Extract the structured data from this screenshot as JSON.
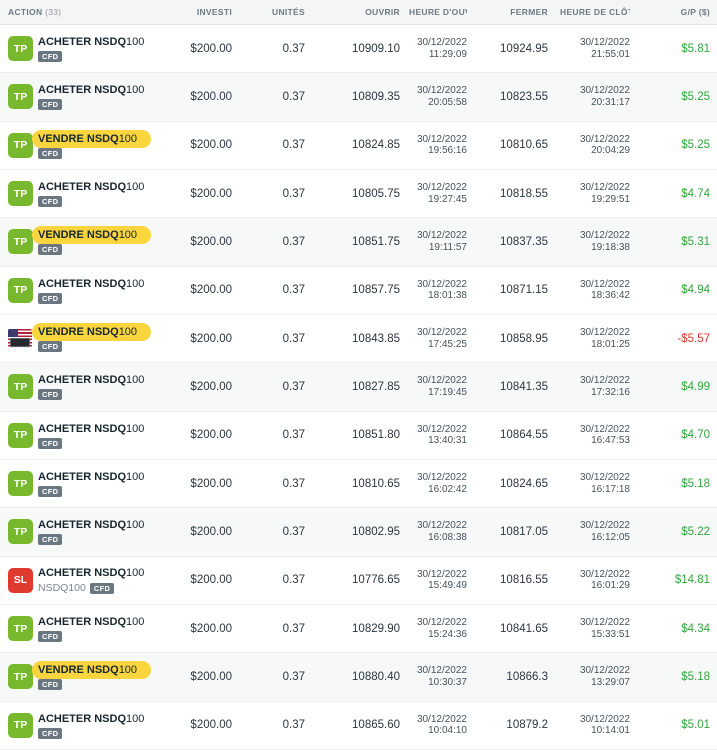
{
  "header": {
    "action_label": "ACTION",
    "action_count": "(33)",
    "invested": "INVESTI",
    "units": "UNITÉS",
    "open": "OUVRIR",
    "open_time": "HEURE D'OUVERT...",
    "close": "FERMER",
    "close_time": "HEURE DE CLÔTU..",
    "gp": "G/P ($)"
  },
  "badges": {
    "tp": "TP",
    "sl": "SL",
    "cfd": "CFD"
  },
  "colors": {
    "tp_green": "#77b82d",
    "sl_red": "#e03a2f",
    "gain_green": "#2fa63c",
    "loss_red": "#d8382e",
    "highlight_yellow": "#fbd53d",
    "cfd_gray": "#6a7680",
    "shaded_row": "#f7f8f8"
  },
  "rows": [
    {
      "badge": "tp",
      "action_bold": "ACHETER NSDQ",
      "action_rest": "100",
      "highlight": false,
      "sub": "",
      "invested": "$200.00",
      "units": "0.37",
      "open": "10909.10",
      "open_date": "30/12/2022",
      "open_time": "11:29:09",
      "close": "10924.95",
      "close_date": "30/12/2022",
      "close_time": "21:55:01",
      "gp": "$5.81",
      "negative": false,
      "shaded": false
    },
    {
      "badge": "tp",
      "action_bold": "ACHETER NSDQ",
      "action_rest": "100",
      "highlight": false,
      "sub": "",
      "invested": "$200.00",
      "units": "0.37",
      "open": "10809.35",
      "open_date": "30/12/2022",
      "open_time": "20:05:58",
      "close": "10823.55",
      "close_date": "30/12/2022",
      "close_time": "20:31:17",
      "gp": "$5.25",
      "negative": false,
      "shaded": true
    },
    {
      "badge": "tp",
      "action_bold": "VENDRE NSDQ",
      "action_rest": "100",
      "highlight": true,
      "sub": "",
      "invested": "$200.00",
      "units": "0.37",
      "open": "10824.85",
      "open_date": "30/12/2022",
      "open_time": "19:56:16",
      "close": "10810.65",
      "close_date": "30/12/2022",
      "close_time": "20:04:29",
      "gp": "$5.25",
      "negative": false,
      "shaded": false
    },
    {
      "badge": "tp",
      "action_bold": "ACHETER NSDQ",
      "action_rest": "100",
      "highlight": false,
      "sub": "",
      "invested": "$200.00",
      "units": "0.37",
      "open": "10805.75",
      "open_date": "30/12/2022",
      "open_time": "19:27:45",
      "close": "10818.55",
      "close_date": "30/12/2022",
      "close_time": "19:29:51",
      "gp": "$4.74",
      "negative": false,
      "shaded": false
    },
    {
      "badge": "tp",
      "action_bold": "VENDRE NSDQ",
      "action_rest": "100",
      "highlight": true,
      "sub": "",
      "invested": "$200.00",
      "units": "0.37",
      "open": "10851.75",
      "open_date": "30/12/2022",
      "open_time": "19:11:57",
      "close": "10837.35",
      "close_date": "30/12/2022",
      "close_time": "19:18:38",
      "gp": "$5.31",
      "negative": false,
      "shaded": true
    },
    {
      "badge": "tp",
      "action_bold": "ACHETER NSDQ",
      "action_rest": "100",
      "highlight": false,
      "sub": "",
      "invested": "$200.00",
      "units": "0.37",
      "open": "10857.75",
      "open_date": "30/12/2022",
      "open_time": "18:01:38",
      "close": "10871.15",
      "close_date": "30/12/2022",
      "close_time": "18:36:42",
      "gp": "$4.94",
      "negative": false,
      "shaded": false
    },
    {
      "badge": "flag",
      "action_bold": "VENDRE NSDQ",
      "action_rest": "100",
      "highlight": true,
      "sub": "",
      "invested": "$200.00",
      "units": "0.37",
      "open": "10843.85",
      "open_date": "30/12/2022",
      "open_time": "17:45:25",
      "close": "10858.95",
      "close_date": "30/12/2022",
      "close_time": "18:01:25",
      "gp": "-$5.57",
      "negative": true,
      "shaded": false
    },
    {
      "badge": "tp",
      "action_bold": "ACHETER NSDQ",
      "action_rest": "100",
      "highlight": false,
      "sub": "",
      "invested": "$200.00",
      "units": "0.37",
      "open": "10827.85",
      "open_date": "30/12/2022",
      "open_time": "17:19:45",
      "close": "10841.35",
      "close_date": "30/12/2022",
      "close_time": "17:32:16",
      "gp": "$4.99",
      "negative": false,
      "shaded": true
    },
    {
      "badge": "tp",
      "action_bold": "ACHETER NSDQ",
      "action_rest": "100",
      "highlight": false,
      "sub": "",
      "invested": "$200.00",
      "units": "0.37",
      "open": "10851.80",
      "open_date": "30/12/2022",
      "open_time": "13:40:31",
      "close": "10864.55",
      "close_date": "30/12/2022",
      "close_time": "16:47:53",
      "gp": "$4.70",
      "negative": false,
      "shaded": false
    },
    {
      "badge": "tp",
      "action_bold": "ACHETER NSDQ",
      "action_rest": "100",
      "highlight": false,
      "sub": "",
      "invested": "$200.00",
      "units": "0.37",
      "open": "10810.65",
      "open_date": "30/12/2022",
      "open_time": "16:02:42",
      "close": "10824.65",
      "close_date": "30/12/2022",
      "close_time": "16:17:18",
      "gp": "$5.18",
      "negative": false,
      "shaded": false
    },
    {
      "badge": "tp",
      "action_bold": "ACHETER NSDQ",
      "action_rest": "100",
      "highlight": false,
      "sub": "",
      "invested": "$200.00",
      "units": "0.37",
      "open": "10802.95",
      "open_date": "30/12/2022",
      "open_time": "16:08:38",
      "close": "10817.05",
      "close_date": "30/12/2022",
      "close_time": "16:12:05",
      "gp": "$5.22",
      "negative": false,
      "shaded": true
    },
    {
      "badge": "sl",
      "action_bold": "ACHETER NSDQ",
      "action_rest": "100",
      "highlight": false,
      "sub": "NSDQ100",
      "invested": "$200.00",
      "units": "0.37",
      "open": "10776.65",
      "open_date": "30/12/2022",
      "open_time": "15:49:49",
      "close": "10816.55",
      "close_date": "30/12/2022",
      "close_time": "16:01:29",
      "gp": "$14.81",
      "negative": false,
      "shaded": false
    },
    {
      "badge": "tp",
      "action_bold": "ACHETER NSDQ",
      "action_rest": "100",
      "highlight": false,
      "sub": "",
      "invested": "$200.00",
      "units": "0.37",
      "open": "10829.90",
      "open_date": "30/12/2022",
      "open_time": "15:24:36",
      "close": "10841.65",
      "close_date": "30/12/2022",
      "close_time": "15:33:51",
      "gp": "$4.34",
      "negative": false,
      "shaded": false
    },
    {
      "badge": "tp",
      "action_bold": "VENDRE NSDQ",
      "action_rest": "100",
      "highlight": true,
      "sub": "",
      "invested": "$200.00",
      "units": "0.37",
      "open": "10880.40",
      "open_date": "30/12/2022",
      "open_time": "10:30:37",
      "close": "10866.3",
      "close_date": "30/12/2022",
      "close_time": "13:29:07",
      "gp": "$5.18",
      "negative": false,
      "shaded": true
    },
    {
      "badge": "tp",
      "action_bold": "ACHETER NSDQ",
      "action_rest": "100",
      "highlight": false,
      "sub": "",
      "invested": "$200.00",
      "units": "0.37",
      "open": "10865.60",
      "open_date": "30/12/2022",
      "open_time": "10:04:10",
      "close": "10879.2",
      "close_date": "30/12/2022",
      "close_time": "10:14:01",
      "gp": "$5.01",
      "negative": false,
      "shaded": false
    }
  ]
}
